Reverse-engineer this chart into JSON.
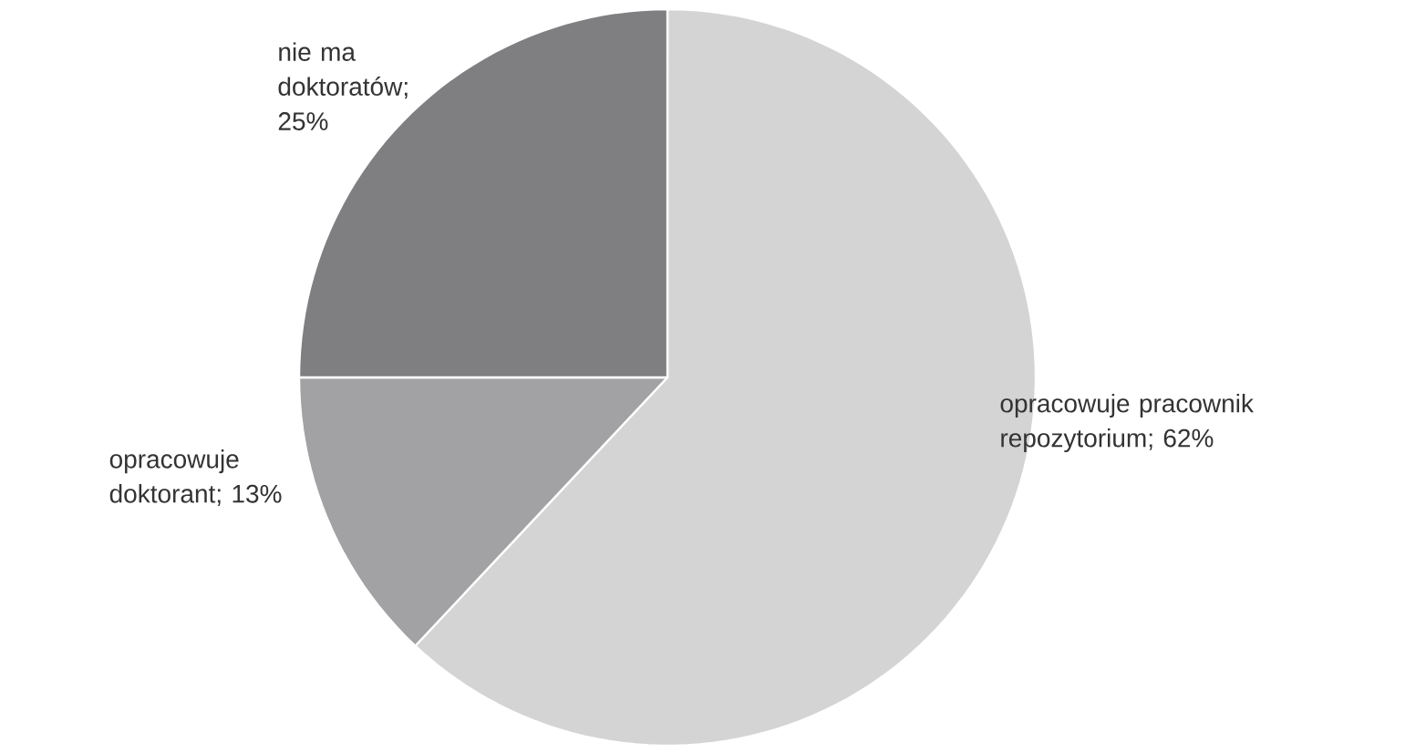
{
  "chart_data": {
    "type": "pie",
    "categories": [
      "opracowuje pracownik repozytorium",
      "opracowuje doktorant",
      "nie ma doktoratów"
    ],
    "values": [
      62,
      13,
      25
    ],
    "value_labels": [
      "; 62%",
      "; 13%",
      "; 25%"
    ],
    "colors": [
      "#d4d4d5",
      "#a2a2a4",
      "#7f7f82"
    ]
  }
}
